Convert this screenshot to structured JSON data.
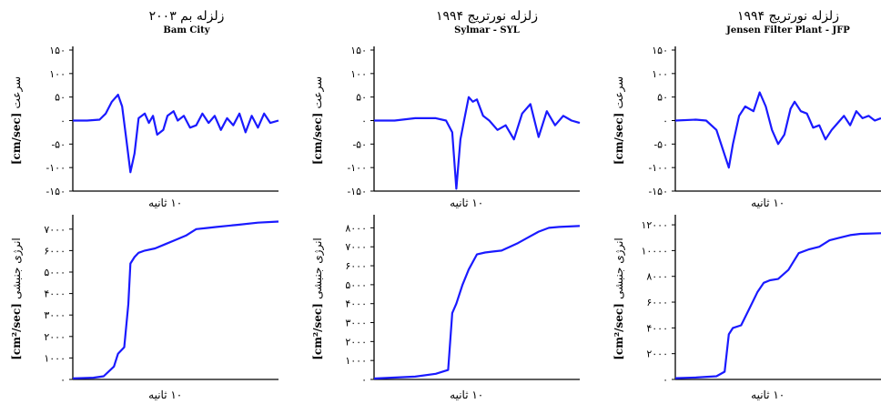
{
  "panels": [
    {
      "title_fa": "زلزله بم ۲۰۰۳",
      "title_en": "Bam City",
      "ylabel_velocity_fa": "سرعت",
      "ylabel_velocity_unit": "[cm/sec]",
      "ylabel_energy_fa": "انرژی جنبشی",
      "ylabel_energy_unit": "[cm²/sec]",
      "xlabel_velocity": "۱۰ ثانیه",
      "xlabel_energy": "۱۰ ثانیه"
    },
    {
      "title_fa": "زلزله نورتریج ۱۹۹۴",
      "title_en": "Sylmar - SYL",
      "ylabel_velocity_fa": "سرعت",
      "ylabel_velocity_unit": "[cm/sec]",
      "ylabel_energy_fa": "انرژی جنبشی",
      "ylabel_energy_unit": "[cm²/sec]",
      "xlabel_velocity": "۱۰ ثانیه",
      "xlabel_energy": "۱۰ ثانیه"
    },
    {
      "title_fa": "زلزله نورتریج ۱۹۹۴",
      "title_en": "Jensen Filter Plant - JFP",
      "ylabel_velocity_fa": "سرعت",
      "ylabel_velocity_unit": "[cm/sec]",
      "ylabel_energy_fa": "انرژی جنبشی",
      "ylabel_energy_unit": "[cm²/sec]",
      "xlabel_velocity": "۱۰ ثانیه",
      "xlabel_energy": "۱۰ ثانیه"
    }
  ],
  "line_color": "#1a1aff",
  "chart_data": [
    {
      "type": "line",
      "panel": "Bam City",
      "quantity": "velocity",
      "ylim": [
        -150,
        150
      ],
      "yticks": [
        150,
        100,
        50,
        0,
        -50,
        -100,
        -150
      ],
      "ytick_labels": [
        "۱۵۰",
        "۱۰۰",
        "۵۰",
        "۰",
        "-۵۰",
        "-۱۰۰",
        "-۱۵۰"
      ],
      "xlim": [
        0,
        1
      ],
      "x": [
        0,
        0.07,
        0.13,
        0.16,
        0.19,
        0.22,
        0.24,
        0.26,
        0.28,
        0.3,
        0.32,
        0.35,
        0.37,
        0.39,
        0.41,
        0.44,
        0.46,
        0.49,
        0.51,
        0.54,
        0.57,
        0.6,
        0.63,
        0.66,
        0.69,
        0.72,
        0.75,
        0.78,
        0.81,
        0.84,
        0.87,
        0.9,
        0.93,
        0.96,
        1.0
      ],
      "y": [
        0,
        0,
        2,
        15,
        40,
        55,
        30,
        -40,
        -110,
        -70,
        5,
        15,
        -5,
        10,
        -30,
        -20,
        10,
        20,
        0,
        10,
        -15,
        -10,
        15,
        -5,
        10,
        -20,
        5,
        -10,
        15,
        -25,
        10,
        -15,
        15,
        -5,
        0
      ]
    },
    {
      "type": "line",
      "panel": "Bam City",
      "quantity": "kinetic energy",
      "ylim": [
        0,
        7500
      ],
      "yticks": [
        7000,
        6000,
        5000,
        4000,
        3000,
        2000,
        1000,
        0
      ],
      "ytick_labels": [
        "۷۰۰۰",
        "۶۰۰۰",
        "۵۰۰۰",
        "۴۰۰۰",
        "۳۰۰۰",
        "۲۰۰۰",
        "۱۰۰۰",
        "۰"
      ],
      "xlim": [
        0,
        1
      ],
      "x": [
        0,
        0.1,
        0.15,
        0.2,
        0.22,
        0.25,
        0.27,
        0.28,
        0.3,
        0.32,
        0.35,
        0.4,
        0.45,
        0.5,
        0.55,
        0.6,
        0.65,
        0.7,
        0.8,
        0.9,
        1.0
      ],
      "y": [
        50,
        80,
        150,
        600,
        1200,
        1500,
        3500,
        5400,
        5700,
        5900,
        6000,
        6100,
        6300,
        6500,
        6700,
        7000,
        7050,
        7100,
        7200,
        7300,
        7350
      ]
    },
    {
      "type": "line",
      "panel": "Sylmar - SYL",
      "quantity": "velocity",
      "ylim": [
        -150,
        150
      ],
      "yticks": [
        150,
        100,
        50,
        0,
        -50,
        -100,
        -150
      ],
      "ytick_labels": [
        "۱۵۰",
        "۱۰۰",
        "۵۰",
        "۰",
        "-۵۰",
        "-۱۰۰",
        "-۱۵۰"
      ],
      "xlim": [
        0,
        1
      ],
      "x": [
        0,
        0.1,
        0.2,
        0.3,
        0.35,
        0.38,
        0.4,
        0.42,
        0.44,
        0.46,
        0.48,
        0.5,
        0.53,
        0.56,
        0.6,
        0.64,
        0.68,
        0.72,
        0.76,
        0.8,
        0.84,
        0.88,
        0.92,
        0.96,
        1.0
      ],
      "y": [
        0,
        0,
        5,
        5,
        0,
        -25,
        -145,
        -40,
        5,
        50,
        40,
        45,
        10,
        0,
        -20,
        -10,
        -40,
        15,
        35,
        -35,
        20,
        -10,
        10,
        0,
        -5
      ]
    },
    {
      "type": "line",
      "panel": "Sylmar - SYL",
      "quantity": "kinetic energy",
      "ylim": [
        0,
        8500
      ],
      "yticks": [
        8000,
        7000,
        6000,
        5000,
        4000,
        3000,
        2000,
        1000,
        0
      ],
      "ytick_labels": [
        "۸۰۰۰",
        "۷۰۰۰",
        "۶۰۰۰",
        "۵۰۰۰",
        "۴۰۰۰",
        "۳۰۰۰",
        "۲۰۰۰",
        "۱۰۰۰",
        "۰"
      ],
      "xlim": [
        0,
        1
      ],
      "x": [
        0,
        0.2,
        0.3,
        0.36,
        0.38,
        0.4,
        0.43,
        0.46,
        0.5,
        0.54,
        0.58,
        0.62,
        0.66,
        0.7,
        0.75,
        0.8,
        0.85,
        0.9,
        1.0
      ],
      "y": [
        50,
        150,
        300,
        500,
        3500,
        4000,
        5000,
        5800,
        6600,
        6700,
        6750,
        6800,
        7000,
        7200,
        7500,
        7800,
        8000,
        8050,
        8100
      ]
    },
    {
      "type": "line",
      "panel": "Jensen Filter Plant - JFP",
      "quantity": "velocity",
      "ylim": [
        -150,
        150
      ],
      "yticks": [
        150,
        100,
        50,
        0,
        -50,
        -100,
        -150
      ],
      "ytick_labels": [
        "۱۵۰",
        "۱۰۰",
        "۵۰",
        "۰",
        "-۵۰",
        "-۱۰۰",
        "-۱۵۰"
      ],
      "xlim": [
        0,
        1
      ],
      "x": [
        0,
        0.1,
        0.15,
        0.2,
        0.23,
        0.26,
        0.28,
        0.31,
        0.34,
        0.38,
        0.41,
        0.44,
        0.47,
        0.5,
        0.53,
        0.56,
        0.58,
        0.61,
        0.64,
        0.67,
        0.7,
        0.73,
        0.76,
        0.79,
        0.82,
        0.85,
        0.88,
        0.91,
        0.94,
        0.97,
        1.0
      ],
      "y": [
        0,
        2,
        0,
        -20,
        -60,
        -100,
        -50,
        10,
        30,
        20,
        60,
        30,
        -20,
        -50,
        -30,
        25,
        40,
        20,
        15,
        -15,
        -10,
        -40,
        -20,
        -5,
        10,
        -10,
        20,
        5,
        10,
        0,
        5
      ]
    },
    {
      "type": "line",
      "panel": "Jensen Filter Plant - JFP",
      "quantity": "kinetic energy",
      "ylim": [
        0,
        12500
      ],
      "yticks": [
        12000,
        10000,
        8000,
        6000,
        4000,
        2000,
        0
      ],
      "ytick_labels": [
        "۱۲۰۰۰",
        "۱۰۰۰۰",
        "۸۰۰۰",
        "۶۰۰۰",
        "۴۰۰۰",
        "۲۰۰۰",
        "۰"
      ],
      "xlim": [
        0,
        1
      ],
      "x": [
        0,
        0.1,
        0.2,
        0.24,
        0.26,
        0.28,
        0.32,
        0.36,
        0.4,
        0.43,
        0.46,
        0.5,
        0.55,
        0.6,
        0.65,
        0.7,
        0.75,
        0.8,
        0.85,
        0.9,
        1.0
      ],
      "y": [
        100,
        150,
        250,
        600,
        3500,
        4000,
        4200,
        5500,
        6800,
        7500,
        7700,
        7800,
        8500,
        9800,
        10100,
        10300,
        10800,
        11000,
        11200,
        11300,
        11350
      ]
    }
  ]
}
